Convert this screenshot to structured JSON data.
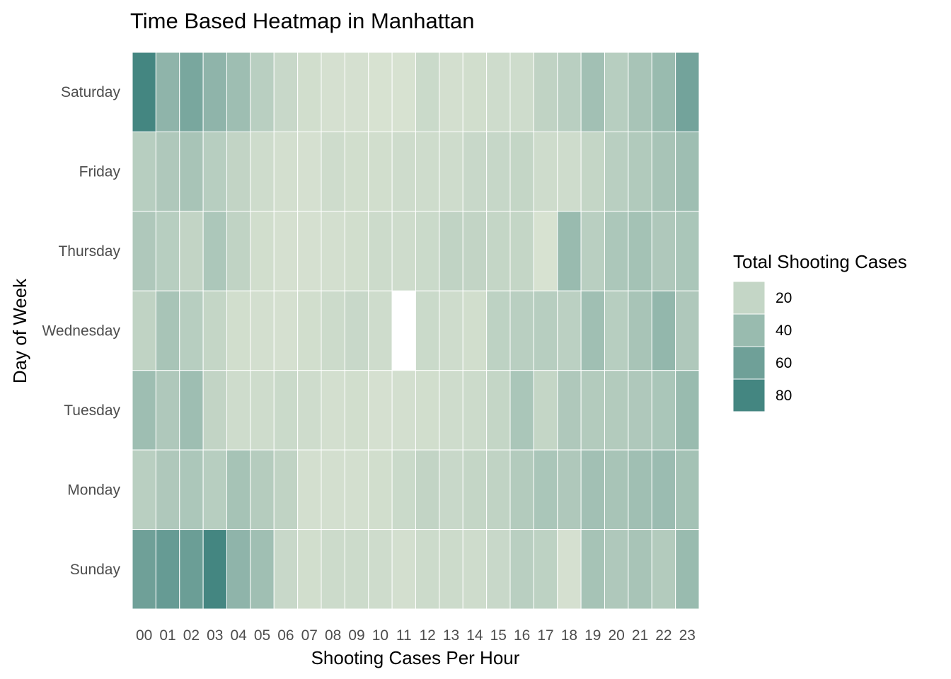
{
  "chart_data": {
    "type": "heatmap",
    "title": "Time Based Heatmap in Manhattan",
    "xlabel": "Shooting Cases Per Hour",
    "ylabel": "Day of Week",
    "x": [
      "00",
      "01",
      "02",
      "03",
      "04",
      "05",
      "06",
      "07",
      "08",
      "09",
      "10",
      "11",
      "12",
      "13",
      "14",
      "15",
      "16",
      "17",
      "18",
      "19",
      "20",
      "21",
      "22",
      "23"
    ],
    "y": [
      "Saturday",
      "Friday",
      "Thursday",
      "Wednesday",
      "Tuesday",
      "Monday",
      "Sunday"
    ],
    "values": [
      [
        80,
        45,
        55,
        45,
        38,
        25,
        18,
        14,
        12,
        12,
        11,
        11,
        17,
        13,
        14,
        15,
        15,
        22,
        25,
        36,
        26,
        33,
        40,
        58
      ],
      [
        26,
        30,
        33,
        26,
        21,
        15,
        13,
        12,
        15,
        14,
        14,
        15,
        15,
        15,
        18,
        19,
        20,
        15,
        15,
        20,
        25,
        29,
        33,
        38
      ],
      [
        30,
        26,
        21,
        31,
        22,
        14,
        12,
        12,
        13,
        14,
        16,
        15,
        17,
        22,
        21,
        20,
        20,
        11,
        40,
        25,
        31,
        35,
        30,
        32
      ],
      [
        22,
        33,
        26,
        20,
        14,
        13,
        12,
        14,
        16,
        18,
        15,
        null,
        17,
        15,
        14,
        23,
        25,
        26,
        24,
        37,
        26,
        33,
        43,
        30
      ],
      [
        38,
        30,
        38,
        21,
        15,
        15,
        17,
        15,
        13,
        14,
        12,
        13,
        14,
        15,
        16,
        20,
        32,
        20,
        30,
        28,
        28,
        30,
        32,
        40
      ],
      [
        25,
        30,
        31,
        26,
        34,
        27,
        22,
        13,
        13,
        13,
        14,
        17,
        21,
        18,
        20,
        22,
        28,
        32,
        30,
        36,
        33,
        37,
        39,
        35
      ],
      [
        60,
        64,
        62,
        80,
        45,
        37,
        18,
        14,
        16,
        16,
        15,
        13,
        16,
        16,
        15,
        18,
        25,
        23,
        12,
        34,
        30,
        33,
        28,
        40
      ]
    ],
    "color_scale": {
      "low_color": "#d9e3d2",
      "high_color": "#40837f",
      "domain": [
        10,
        82
      ],
      "missing_color": "#ffffff",
      "grid_line_color": "#ffffff"
    },
    "legend": {
      "title": "Total Shooting Cases",
      "position": "right",
      "breaks": [
        20,
        40,
        60,
        80
      ],
      "labels": [
        "20",
        "40",
        "60",
        "80"
      ]
    },
    "grid": false
  }
}
